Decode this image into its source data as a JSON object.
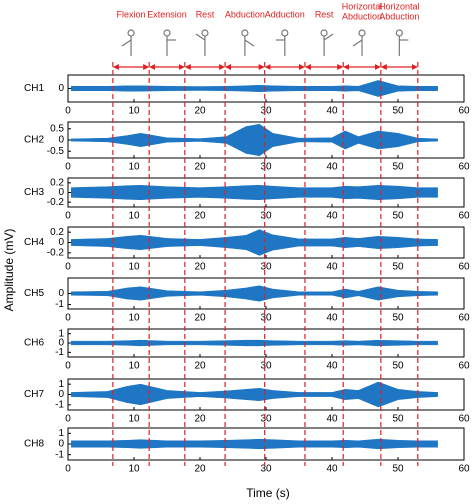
{
  "figure": {
    "xlabel": "Time (s)",
    "ylabel": "Amplitude (mV)",
    "phase_boundaries": [
      6.8,
      12.3,
      17.7,
      23.8,
      29.8,
      35.9,
      41.7,
      47.4,
      53.0
    ],
    "phase_labels": [
      [
        "Flexion"
      ],
      [
        "Extension"
      ],
      [
        "Rest"
      ],
      [
        "Abduction"
      ],
      [
        "Adduction"
      ],
      [
        "Rest"
      ],
      [
        "Horizontal",
        "Abduction"
      ],
      [
        "Horizontal",
        "Abduction"
      ]
    ],
    "boundary_color": "#e02020"
  },
  "chart_data": [
    {
      "type": "envelope",
      "ylabel": "CH1",
      "color": "#1f77c4",
      "xlim": [
        0,
        60
      ],
      "xticks": [
        0,
        10,
        20,
        30,
        40,
        50,
        60
      ],
      "ylim": [
        -0.5,
        0.5
      ],
      "yticks": [
        0
      ],
      "x": [
        0.5,
        6,
        9,
        11,
        15,
        20,
        24,
        27,
        29,
        31,
        35,
        40,
        42,
        44,
        47,
        50,
        53,
        56
      ],
      "values": [
        0.08,
        0.08,
        0.1,
        0.1,
        0.08,
        0.07,
        0.08,
        0.1,
        0.12,
        0.1,
        0.08,
        0.08,
        0.1,
        0.08,
        0.3,
        0.1,
        0.08,
        0.08
      ]
    },
    {
      "type": "envelope",
      "ylabel": "CH2",
      "color": "#1f77c4",
      "xlim": [
        0,
        60
      ],
      "xticks": [
        0,
        10,
        20,
        30,
        40,
        50,
        60
      ],
      "ylim": [
        -0.8,
        0.8
      ],
      "yticks": [
        -0.5,
        0,
        0.5
      ],
      "x": [
        0.5,
        6,
        9,
        11,
        15,
        20,
        24,
        27,
        29,
        31,
        35,
        40,
        42,
        44,
        47,
        50,
        53,
        56
      ],
      "values": [
        0.05,
        0.08,
        0.2,
        0.3,
        0.1,
        0.06,
        0.15,
        0.6,
        0.7,
        0.3,
        0.08,
        0.1,
        0.4,
        0.15,
        0.4,
        0.3,
        0.08,
        0.05
      ]
    },
    {
      "type": "envelope",
      "ylabel": "CH3",
      "color": "#1f77c4",
      "xlim": [
        0,
        60
      ],
      "xticks": [
        0,
        10,
        20,
        30,
        40,
        50,
        60
      ],
      "ylim": [
        -0.3,
        0.3
      ],
      "yticks": [
        -0.2,
        0,
        0.2
      ],
      "x": [
        0.5,
        6,
        9,
        11,
        15,
        20,
        24,
        27,
        29,
        31,
        35,
        40,
        42,
        44,
        47,
        50,
        53,
        56
      ],
      "values": [
        0.1,
        0.12,
        0.14,
        0.15,
        0.12,
        0.1,
        0.12,
        0.14,
        0.15,
        0.13,
        0.1,
        0.1,
        0.13,
        0.12,
        0.15,
        0.13,
        0.1,
        0.1
      ]
    },
    {
      "type": "envelope",
      "ylabel": "CH4",
      "color": "#1f77c4",
      "xlim": [
        0,
        60
      ],
      "xticks": [
        0,
        10,
        20,
        30,
        40,
        50,
        60
      ],
      "ylim": [
        -0.3,
        0.3
      ],
      "yticks": [
        -0.2,
        0,
        0.2
      ],
      "x": [
        0.5,
        6,
        9,
        11,
        15,
        20,
        24,
        27,
        29,
        31,
        35,
        40,
        42,
        44,
        47,
        50,
        53,
        56
      ],
      "values": [
        0.06,
        0.08,
        0.12,
        0.14,
        0.08,
        0.06,
        0.1,
        0.14,
        0.25,
        0.15,
        0.07,
        0.07,
        0.1,
        0.08,
        0.12,
        0.1,
        0.07,
        0.06
      ]
    },
    {
      "type": "envelope",
      "ylabel": "CH5",
      "color": "#1f77c4",
      "xlim": [
        0,
        60
      ],
      "xticks": [
        0,
        10,
        20,
        30,
        40,
        50,
        60
      ],
      "ylim": [
        -1.4,
        1.4
      ],
      "yticks": [
        -1,
        0
      ],
      "x": [
        0.5,
        6,
        9,
        11,
        15,
        20,
        24,
        27,
        29,
        31,
        35,
        40,
        42,
        44,
        47,
        50,
        53,
        56
      ],
      "values": [
        0.15,
        0.2,
        0.5,
        0.6,
        0.25,
        0.15,
        0.3,
        0.5,
        0.7,
        0.4,
        0.15,
        0.15,
        0.4,
        0.2,
        0.6,
        0.3,
        0.2,
        0.15
      ]
    },
    {
      "type": "envelope",
      "ylabel": "CH6",
      "color": "#1f77c4",
      "xlim": [
        0,
        60
      ],
      "xticks": [
        0,
        10,
        20,
        30,
        40,
        50,
        60
      ],
      "ylim": [
        -1.5,
        1.5
      ],
      "yticks": [
        -1,
        0,
        1
      ],
      "x": [
        0.5,
        6,
        9,
        11,
        15,
        20,
        24,
        27,
        29,
        31,
        35,
        40,
        42,
        44,
        47,
        50,
        53,
        56
      ],
      "values": [
        0.2,
        0.2,
        0.25,
        0.3,
        0.2,
        0.2,
        0.25,
        0.3,
        0.3,
        0.25,
        0.2,
        0.2,
        0.25,
        0.2,
        0.3,
        0.25,
        0.2,
        0.2
      ]
    },
    {
      "type": "envelope",
      "ylabel": "CH7",
      "color": "#1f77c4",
      "xlim": [
        0,
        60
      ],
      "xticks": [
        0,
        10,
        20,
        30,
        40,
        50,
        60
      ],
      "ylim": [
        -1.5,
        1.5
      ],
      "yticks": [
        -1,
        0,
        1
      ],
      "x": [
        0.5,
        6,
        9,
        11,
        15,
        20,
        24,
        27,
        29,
        31,
        35,
        40,
        42,
        44,
        47,
        50,
        53,
        56
      ],
      "values": [
        0.2,
        0.3,
        0.8,
        1.0,
        0.4,
        0.2,
        0.35,
        0.5,
        0.6,
        0.4,
        0.2,
        0.2,
        0.5,
        0.4,
        1.2,
        0.5,
        0.3,
        0.2
      ]
    },
    {
      "type": "envelope",
      "ylabel": "CH8",
      "color": "#1f77c4",
      "xlim": [
        0,
        60
      ],
      "xticks": [
        0,
        10,
        20,
        30,
        40,
        50,
        60
      ],
      "ylim": [
        -1.5,
        1.5
      ],
      "yticks": [
        -1,
        0,
        1
      ],
      "x": [
        0.5,
        6,
        9,
        11,
        15,
        20,
        24,
        27,
        29,
        31,
        35,
        40,
        42,
        44,
        47,
        50,
        53,
        56
      ],
      "values": [
        0.3,
        0.3,
        0.35,
        0.4,
        0.3,
        0.3,
        0.35,
        0.4,
        0.45,
        0.4,
        0.3,
        0.3,
        0.35,
        0.3,
        0.45,
        0.35,
        0.3,
        0.3
      ]
    }
  ]
}
